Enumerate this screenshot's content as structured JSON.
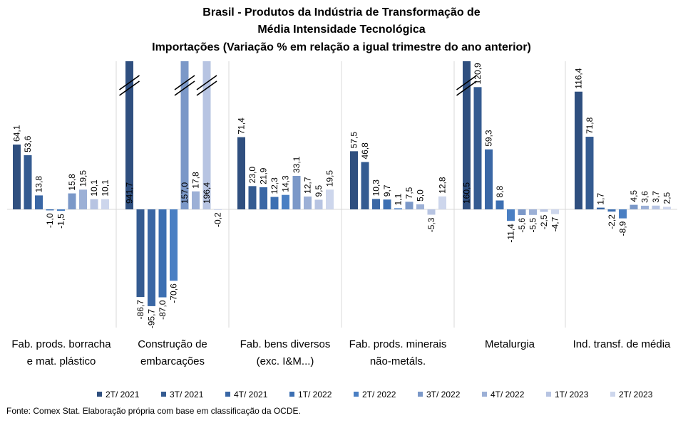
{
  "chart_data": {
    "type": "bar",
    "title_lines": [
      "Brasil - Produtos da Indústria de Transformação  de",
      "Média Intensidade Tecnológica",
      "Importações (Variação % em relação a igual trimestre do ano anterior)"
    ],
    "categories": [
      [
        "Fab. prods. borracha",
        "e mat. plástico"
      ],
      [
        "Construção de",
        "embarcações"
      ],
      [
        "Fab. bens diversos",
        "(exc. I&M...)"
      ],
      [
        "Fab. prods. minerais",
        "não-metáls."
      ],
      [
        "Metalurgia"
      ],
      [
        "Ind. transf. de média"
      ]
    ],
    "series": [
      {
        "name": "2T/ 2021",
        "color": "#2f4f7f",
        "values": [
          64.1,
          941.7,
          71.4,
          57.5,
          160.5,
          116.4
        ],
        "labels": [
          "64,1",
          "941,7",
          "71,4",
          "57,5",
          "160,5",
          "116,4"
        ]
      },
      {
        "name": "3T/ 2021",
        "color": "#345b91",
        "values": [
          53.6,
          -86.7,
          23.0,
          46.8,
          120.9,
          71.8
        ],
        "labels": [
          "53,6",
          "-86,7",
          "23,0",
          "46,8",
          "120,9",
          "71,8"
        ]
      },
      {
        "name": "4T/ 2021",
        "color": "#3a67a5",
        "values": [
          13.8,
          -95.7,
          21.9,
          10.3,
          59.3,
          1.7
        ],
        "labels": [
          "13,8",
          "-95,7",
          "21,9",
          "10,3",
          "59,3",
          "1,7"
        ]
      },
      {
        "name": "1T/ 2022",
        "color": "#3c6fb2",
        "values": [
          -1.0,
          -87.0,
          12.3,
          9.7,
          8.8,
          -2.2
        ],
        "labels": [
          "-1,0",
          "-87,0",
          "12,3",
          "9,7",
          "8,8",
          "-2,2"
        ]
      },
      {
        "name": "2T/ 2022",
        "color": "#4a7fc3",
        "values": [
          -1.5,
          -70.6,
          14.3,
          1.1,
          -11.4,
          -8.9
        ],
        "labels": [
          "-1,5",
          "-70,6",
          "14,3",
          "1,1",
          "-11,4",
          "-8,9"
        ]
      },
      {
        "name": "3T/ 2022",
        "color": "#7b98c8",
        "values": [
          15.8,
          157.0,
          33.1,
          7.5,
          -5.6,
          4.5
        ],
        "labels": [
          "15,8",
          "157,0",
          "33,1",
          "7,5",
          "-5,6",
          "4,5"
        ]
      },
      {
        "name": "4T/ 2022",
        "color": "#9cb0d6",
        "values": [
          19.5,
          17.8,
          12.7,
          5.0,
          -5.5,
          3.6
        ],
        "labels": [
          "19,5",
          "17,8",
          "12,7",
          "5,0",
          "-5,5",
          "3,6"
        ]
      },
      {
        "name": "1T/ 2023",
        "color": "#b7c4e2",
        "values": [
          10.1,
          196.4,
          9.5,
          -5.3,
          -2.5,
          3.7
        ],
        "labels": [
          "10,1",
          "196,4",
          "9,5",
          "-5,3",
          "-2,5",
          "3,7"
        ]
      },
      {
        "name": "2T/ 2023",
        "color": "#cdd6ec",
        "values": [
          10.1,
          -0.2,
          19.5,
          12.8,
          -4.7,
          2.5
        ],
        "labels": [
          "10,1",
          "-0,2",
          "19,5",
          "12,8",
          "-4,7",
          "2,5"
        ]
      }
    ],
    "truncated_axis_breaks": true,
    "legend_position": "bottom",
    "grid": false
  },
  "footer": {
    "source": "Fonte: Comex Stat. Elaboração própria com base em classificação da OCDE."
  }
}
